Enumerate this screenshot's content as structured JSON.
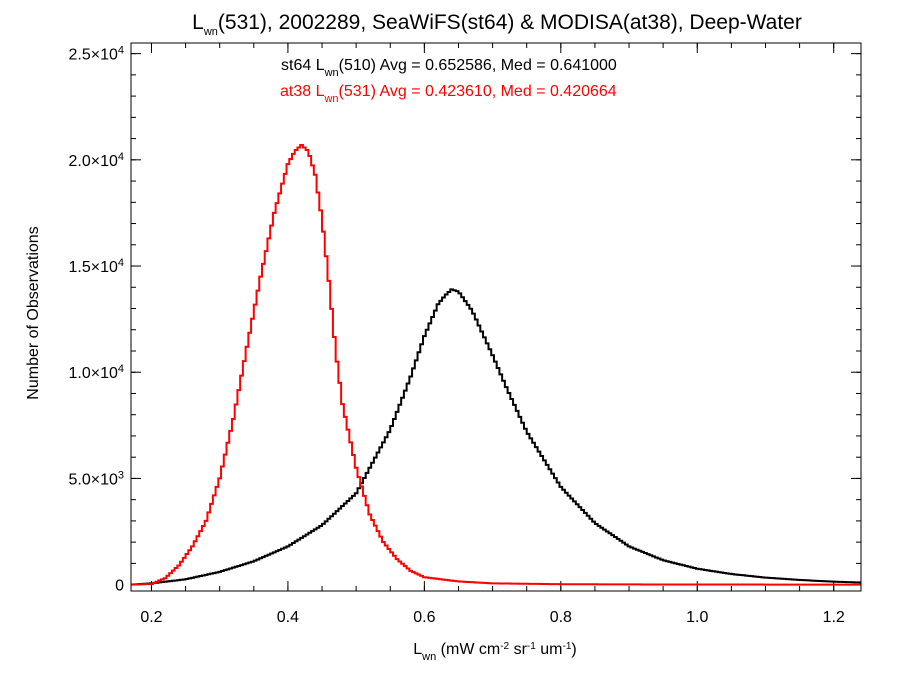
{
  "chart_data": {
    "type": "line",
    "title": {
      "pre": "L",
      "sub": "wn",
      "post": "(531), 2002289, SeaWiFS(st64) & MODISA(at38), Deep-Water"
    },
    "ylabel": "Number of Observations",
    "xlabel": {
      "pre": "L",
      "sub": "wn",
      "mid1": " (mW cm",
      "sup1": "-2",
      "mid2": " sr",
      "sup2": "-1",
      "mid3": " um",
      "sup3": "-1",
      "post": ")"
    },
    "xlim": [
      0.17,
      1.24
    ],
    "ylim": [
      -300,
      25500
    ],
    "xticks": [
      {
        "value": 0.2,
        "label": "0.2"
      },
      {
        "value": 0.4,
        "label": "0.4"
      },
      {
        "value": 0.6,
        "label": "0.6"
      },
      {
        "value": 0.8,
        "label": "0.8"
      },
      {
        "value": 1.0,
        "label": "1.0"
      },
      {
        "value": 1.2,
        "label": "1.2"
      }
    ],
    "xminor_step": 0.05,
    "yticks": [
      {
        "value": 0,
        "mant": "0",
        "exp": ""
      },
      {
        "value": 5000,
        "mant": "5.0×10",
        "exp": "3"
      },
      {
        "value": 10000,
        "mant": "1.0×10",
        "exp": "4"
      },
      {
        "value": 15000,
        "mant": "1.5×10",
        "exp": "4"
      },
      {
        "value": 20000,
        "mant": "2.0×10",
        "exp": "4"
      },
      {
        "value": 25000,
        "mant": "2.5×10",
        "exp": "4"
      }
    ],
    "yminor_step": 1000,
    "grid": false,
    "series": [
      {
        "annotation": {
          "pre": "st64 L",
          "sub": "wn",
          "post": "(510) Avg = 0.652586, Med = 0.641000"
        },
        "color": "#000000",
        "x": [
          0.17,
          0.2,
          0.25,
          0.3,
          0.35,
          0.4,
          0.45,
          0.5,
          0.52,
          0.55,
          0.58,
          0.6,
          0.62,
          0.63,
          0.64,
          0.65,
          0.67,
          0.7,
          0.72,
          0.75,
          0.8,
          0.85,
          0.9,
          0.95,
          1.0,
          1.05,
          1.1,
          1.15,
          1.2,
          1.24
        ],
        "values": [
          0,
          60,
          250,
          600,
          1100,
          1800,
          2800,
          4300,
          5500,
          7300,
          9800,
          11700,
          13200,
          13600,
          13900,
          13800,
          12900,
          10800,
          9300,
          7200,
          4600,
          2900,
          1800,
          1150,
          750,
          500,
          330,
          220,
          140,
          100
        ]
      },
      {
        "annotation": {
          "pre": "at38 L",
          "sub": "wn",
          "post": "(531) Avg = 0.423610, Med = 0.420664"
        },
        "color": "#ff0000",
        "x": [
          0.17,
          0.2,
          0.22,
          0.24,
          0.26,
          0.28,
          0.3,
          0.32,
          0.34,
          0.36,
          0.38,
          0.4,
          0.41,
          0.42,
          0.43,
          0.44,
          0.45,
          0.46,
          0.47,
          0.48,
          0.5,
          0.52,
          0.54,
          0.56,
          0.58,
          0.6,
          0.65,
          0.7,
          0.8,
          0.9,
          1.0,
          1.24
        ],
        "values": [
          0,
          30,
          300,
          900,
          1800,
          3000,
          5000,
          7800,
          11200,
          14500,
          17500,
          19800,
          20400,
          20700,
          20400,
          19300,
          17200,
          14300,
          11000,
          8500,
          5500,
          3300,
          2000,
          1200,
          650,
          350,
          150,
          60,
          20,
          10,
          5,
          0
        ]
      }
    ]
  }
}
